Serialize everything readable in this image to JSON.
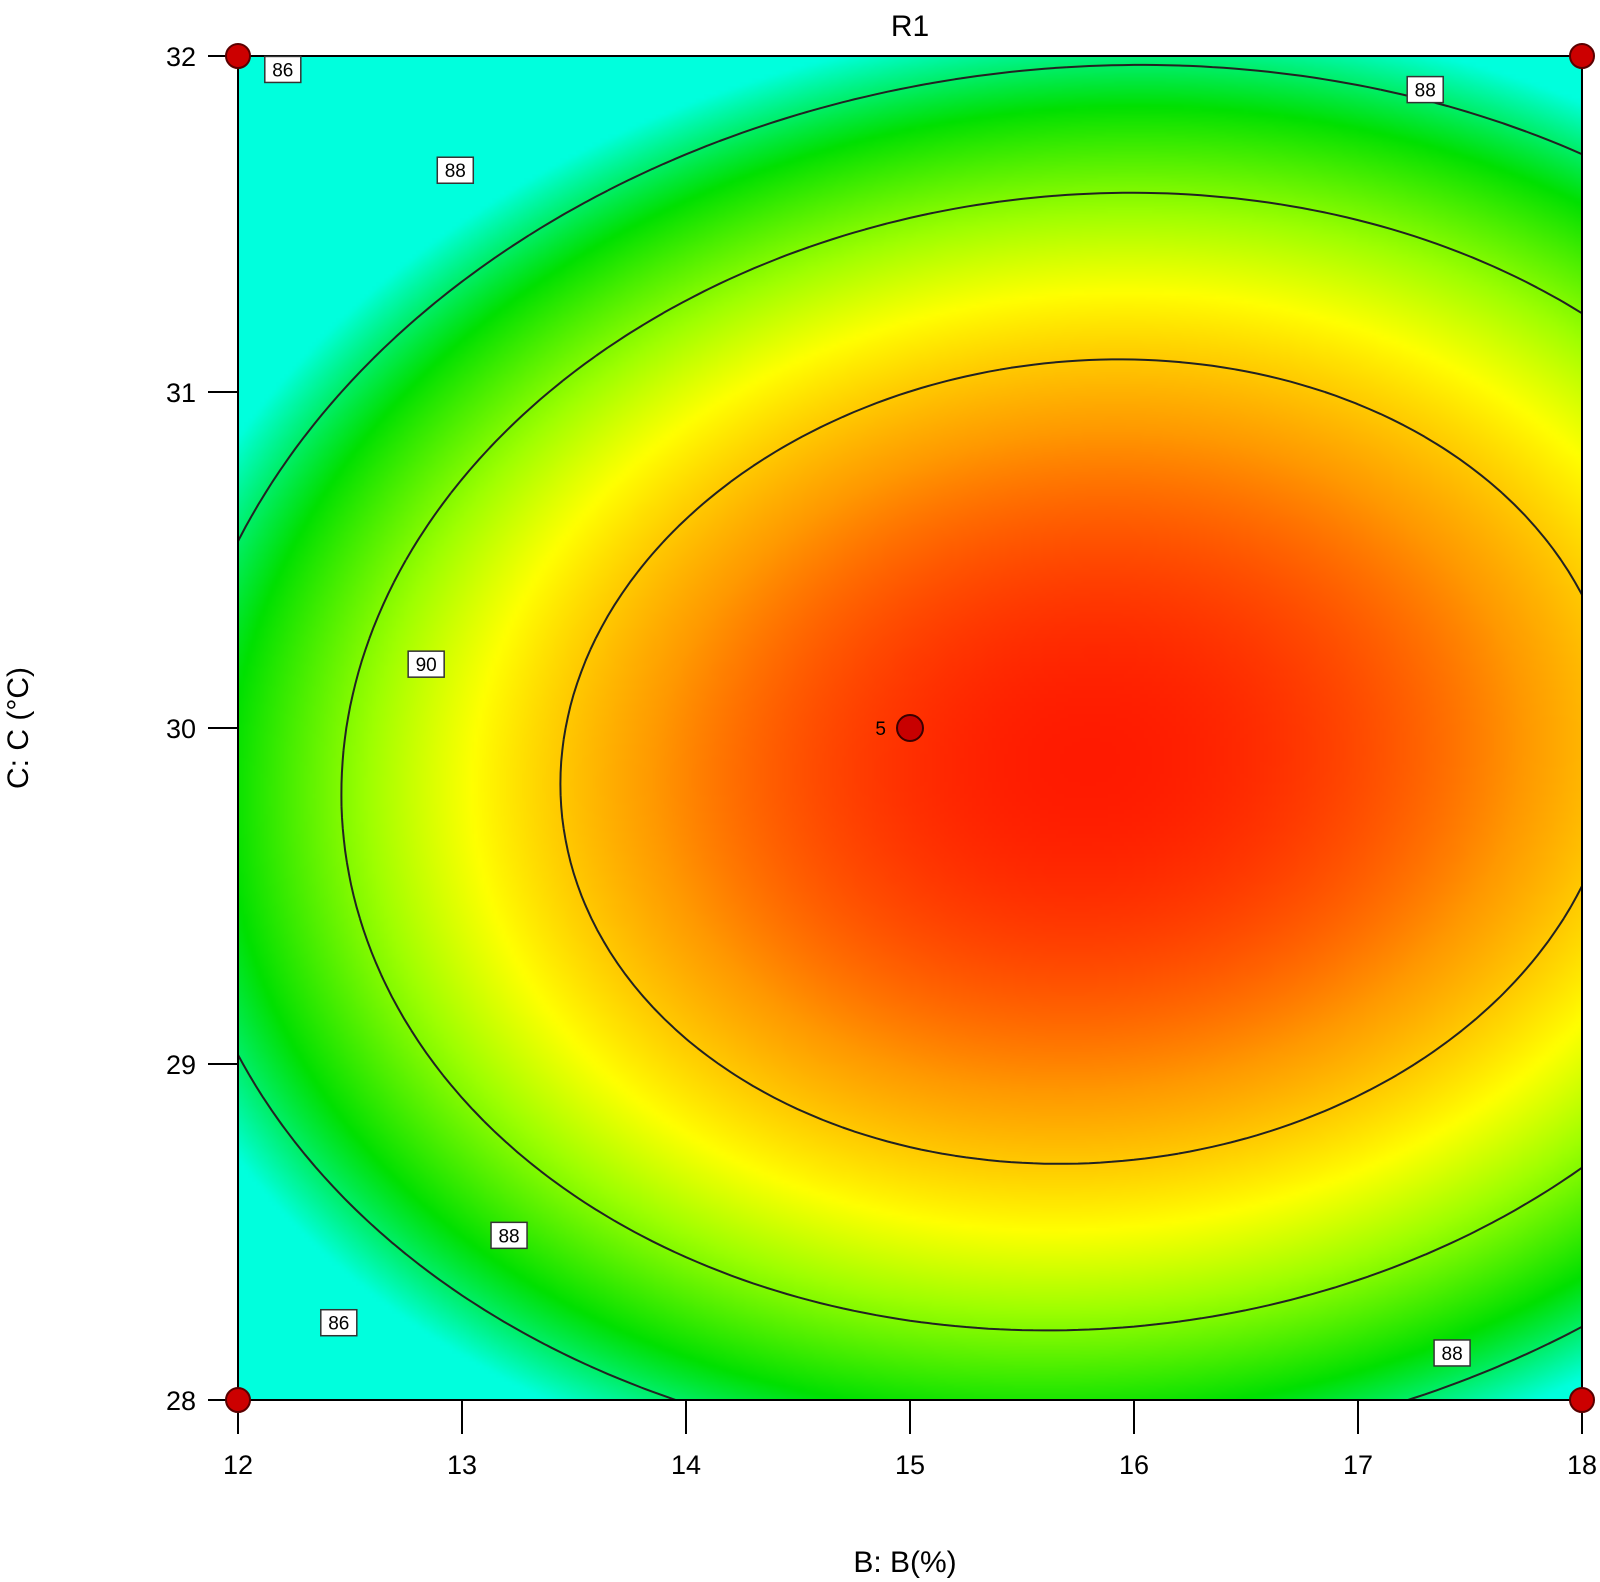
{
  "chart_data": {
    "type": "contour",
    "title": "R1",
    "xlabel": "B: B(%)",
    "ylabel": "C: C (°C)",
    "xlim": [
      12,
      18
    ],
    "ylim": [
      28,
      32
    ],
    "x_ticks": [
      "12",
      "13",
      "14",
      "15",
      "16",
      "17",
      "18"
    ],
    "y_ticks": [
      "28",
      "29",
      "30",
      "31",
      "32"
    ],
    "colormap": [
      "#00ffdd",
      "#00e000",
      "#9cff00",
      "#ffff00",
      "#ff9900",
      "#ff1a00"
    ],
    "surface_peak": {
      "x": 15.8,
      "y": 29.9
    },
    "contour_levels": [
      86,
      88,
      90
    ],
    "contour_labels": [
      {
        "text": "86",
        "x": 12.2,
        "y": 31.96
      },
      {
        "text": "88",
        "x": 12.97,
        "y": 31.66
      },
      {
        "text": "88",
        "x": 17.3,
        "y": 31.9
      },
      {
        "text": "90",
        "x": 12.84,
        "y": 30.19
      },
      {
        "text": "88",
        "x": 13.21,
        "y": 28.49
      },
      {
        "text": "86",
        "x": 12.45,
        "y": 28.23
      },
      {
        "text": "88",
        "x": 17.42,
        "y": 28.14
      }
    ],
    "design_points": [
      {
        "x": 12,
        "y": 32,
        "label": ""
      },
      {
        "x": 18,
        "y": 32,
        "label": ""
      },
      {
        "x": 12,
        "y": 28,
        "label": ""
      },
      {
        "x": 18,
        "y": 28,
        "label": ""
      },
      {
        "x": 15,
        "y": 30,
        "label": "5"
      }
    ]
  }
}
